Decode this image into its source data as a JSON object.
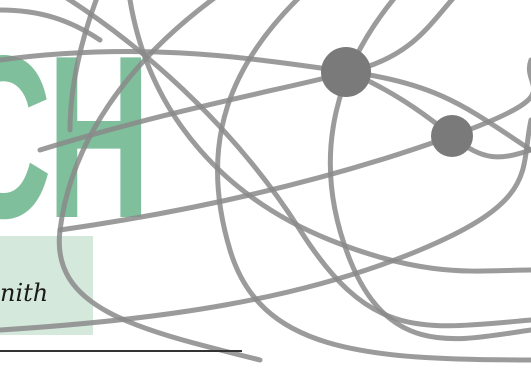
{
  "heading": {
    "letters": "CH",
    "color": "#7fbf9c"
  },
  "name_label": {
    "text": "nith",
    "box_color": "#d4e8dc"
  },
  "rule": {
    "color": "#333333"
  },
  "graphic": {
    "icon": "globe-network-lines-icon",
    "line_color": "#8a8a8a",
    "node_color": "#7a7a7a"
  }
}
